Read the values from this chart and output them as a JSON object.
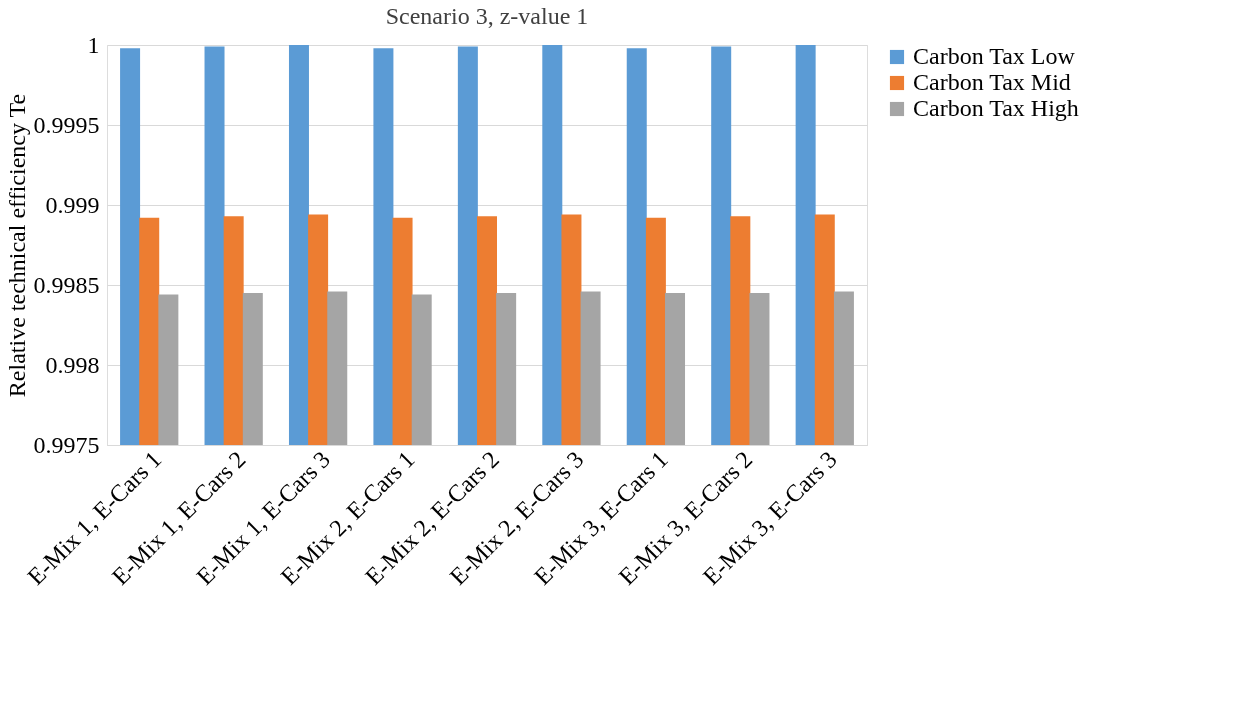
{
  "chart_data": {
    "type": "bar",
    "title": "Scenario 3, z-value 1",
    "ylabel": "Relative technical efficiency Te",
    "categories": [
      "E-Mix 1, E-Cars 1",
      "E-Mix 1, E-Cars 2",
      "E-Mix 1, E-Cars 3",
      "E-Mix 2, E-Cars 1",
      "E-Mix 2, E-Cars 2",
      "E-Mix 2, E-Cars 3",
      "E-Mix 3, E-Cars 1",
      "E-Mix 3, E-Cars 2",
      "E-Mix 3, E-Cars 3"
    ],
    "series": [
      {
        "name": "Carbon Tax Low",
        "color": "#5b9bd5",
        "values": [
          0.99998,
          0.99999,
          1.0,
          0.99998,
          0.99999,
          1.0,
          0.99998,
          0.99999,
          1.0
        ]
      },
      {
        "name": "Carbon Tax Mid",
        "color": "#ed7d31",
        "values": [
          0.99892,
          0.99893,
          0.99894,
          0.99892,
          0.99893,
          0.99894,
          0.99892,
          0.99893,
          0.99894
        ]
      },
      {
        "name": "Carbon Tax High",
        "color": "#a5a5a5",
        "values": [
          0.99844,
          0.99845,
          0.99846,
          0.99844,
          0.99845,
          0.99846,
          0.99845,
          0.99845,
          0.99846
        ]
      }
    ],
    "ylim": [
      0.9975,
      1.0
    ],
    "yticks": [
      0.9975,
      0.998,
      0.9985,
      0.999,
      0.9995,
      1
    ],
    "grid": "y",
    "legend": "right"
  }
}
